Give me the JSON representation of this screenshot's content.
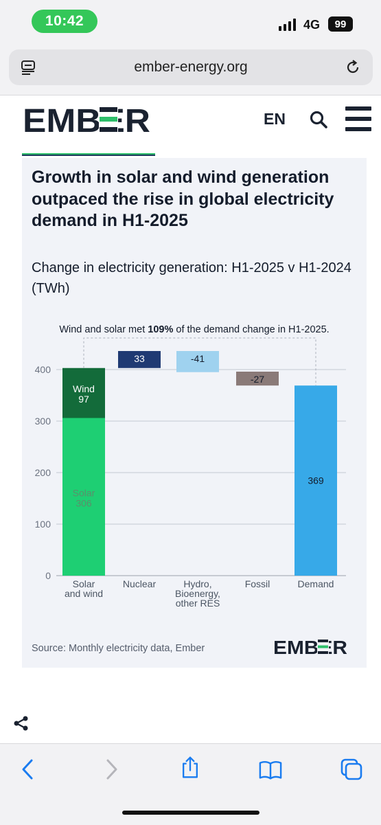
{
  "status_bar": {
    "time": "10:42",
    "network": "4G",
    "battery": "99"
  },
  "browser": {
    "url": "ember-energy.org"
  },
  "site": {
    "brand": "EMBER",
    "language": "EN"
  },
  "card": {
    "title": "Growth in solar and wind generation outpaced the rise in global electricity demand in H1-2025",
    "subtitle": "Change in electricity generation: H1-2025 v H1-2024 (TWh)",
    "source": "Source: Monthly electricity data, Ember",
    "logo_text": "EMBER"
  },
  "colors": {
    "brand_navy": "#1a2230",
    "accent_green": "#2fbf6b",
    "solar": "#1ecf73",
    "wind": "#136b3a",
    "nuclear": "#1f3a73",
    "hydro": "#9fd2ef",
    "fossil": "#8a7a78",
    "demand": "#37a9e8",
    "time_pill": "#34c759"
  },
  "chart_data": {
    "type": "bar",
    "title": "",
    "annotation": {
      "prefix": "Wind and solar met ",
      "bold": "109%",
      "suffix": " of the demand change in H1-2025."
    },
    "ylim": [
      0,
      420
    ],
    "yticks": [
      0,
      100,
      200,
      300,
      400
    ],
    "grid": true,
    "categories": [
      "Solar and wind",
      "Nuclear",
      "Hydro, Bioenergy, other RES",
      "Fossil",
      "Demand"
    ],
    "category_lines": [
      [
        "Solar",
        "and wind"
      ],
      [
        "Nuclear"
      ],
      [
        "Hydro,",
        "Bioenergy,",
        "other RES"
      ],
      [
        "Fossil"
      ],
      [
        "Demand"
      ]
    ],
    "bars": [
      {
        "category": "Solar and wind",
        "segments": [
          {
            "name": "Solar",
            "value": 306,
            "label": "306",
            "base": 0
          },
          {
            "name": "Wind",
            "value": 97,
            "label": "97",
            "base": 306
          }
        ]
      },
      {
        "category": "Nuclear",
        "segments": [
          {
            "name": "",
            "value": 33,
            "label": "33",
            "base": 403
          }
        ]
      },
      {
        "category": "Hydro, Bioenergy, other RES",
        "segments": [
          {
            "name": "",
            "value": -41,
            "label": "-41",
            "base": 436
          }
        ]
      },
      {
        "category": "Fossil",
        "segments": [
          {
            "name": "",
            "value": -27,
            "label": "-27",
            "base": 396
          }
        ]
      },
      {
        "category": "Demand",
        "segments": [
          {
            "name": "",
            "value": 369,
            "label": "369",
            "base": 0
          }
        ]
      }
    ]
  }
}
